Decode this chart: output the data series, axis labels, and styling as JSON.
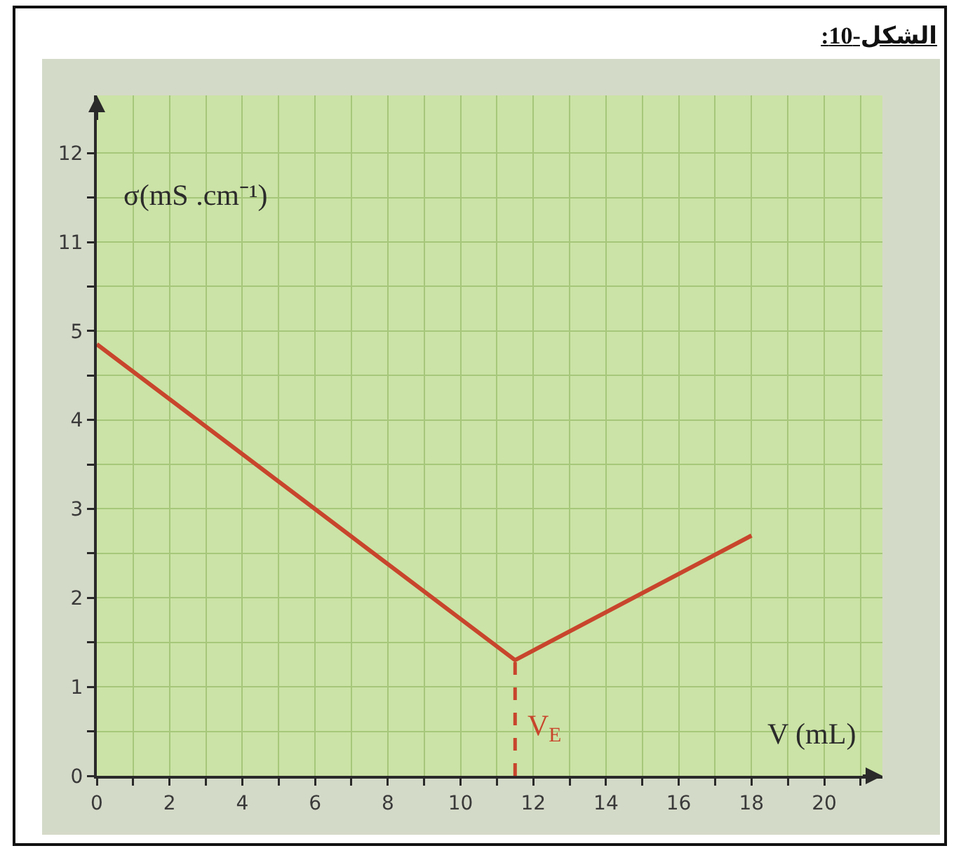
{
  "chart_data": [
    {
      "type": "line",
      "title": "الشكل-10:",
      "ylabel": "σ(mS .cm⁻¹)",
      "xlim": [
        0,
        21.6
      ],
      "ylim": [
        10.25,
        12.65
      ],
      "xticks": [
        0,
        {
          "value": 1,
          "label": null
        },
        2,
        {
          "value": 3,
          "label": null
        },
        4,
        {
          "value": 5,
          "label": null
        },
        6,
        {
          "value": 7,
          "label": null
        },
        8,
        {
          "value": 9,
          "label": null
        },
        10,
        {
          "value": 11,
          "label": null
        },
        12,
        {
          "value": 13,
          "label": null
        },
        14,
        {
          "value": 15,
          "label": null
        },
        16,
        {
          "value": 17,
          "label": null
        },
        18,
        {
          "value": 19,
          "label": null
        },
        20,
        {
          "value": 21,
          "label": null
        }
      ],
      "yticks": [
        {
          "value": 10.5,
          "label": null
        },
        11,
        {
          "value": 11.5,
          "label": null
        },
        12
      ],
      "grid": true,
      "tick_labels": "y"
    },
    {
      "type": "line",
      "xlabel": "V (mL)",
      "x": [
        0,
        11.5,
        18
      ],
      "series": [
        {
          "color": "#c8452c",
          "values": [
            4.85,
            1.3,
            2.7
          ]
        }
      ],
      "xlim": [
        0,
        21.6
      ],
      "ylim": [
        0,
        5.25
      ],
      "xticks": [
        0,
        {
          "value": 1,
          "label": null
        },
        2,
        {
          "value": 3,
          "label": null
        },
        4,
        {
          "value": 5,
          "label": null
        },
        6,
        {
          "value": 7,
          "label": null
        },
        8,
        {
          "value": 9,
          "label": null
        },
        10,
        {
          "value": 11,
          "label": null
        },
        12,
        {
          "value": 13,
          "label": null
        },
        14,
        {
          "value": 15,
          "label": null
        },
        16,
        {
          "value": 17,
          "label": null
        },
        18,
        {
          "value": 19,
          "label": null
        },
        20,
        {
          "value": 21,
          "label": null
        }
      ],
      "yticks": [
        0,
        {
          "value": 0.5,
          "label": null
        },
        1,
        {
          "value": 1.5,
          "label": null
        },
        2,
        {
          "value": 2.5,
          "label": null
        },
        3,
        {
          "value": 3.5,
          "label": null
        },
        4,
        {
          "value": 4.5,
          "label": null
        },
        5
      ],
      "grid": true,
      "ref_lines": [
        {
          "axis": "x",
          "value": 11.5,
          "label": "V$_{E}$",
          "color": "#c8452c",
          "line_style": "dashed"
        }
      ]
    }
  ]
}
